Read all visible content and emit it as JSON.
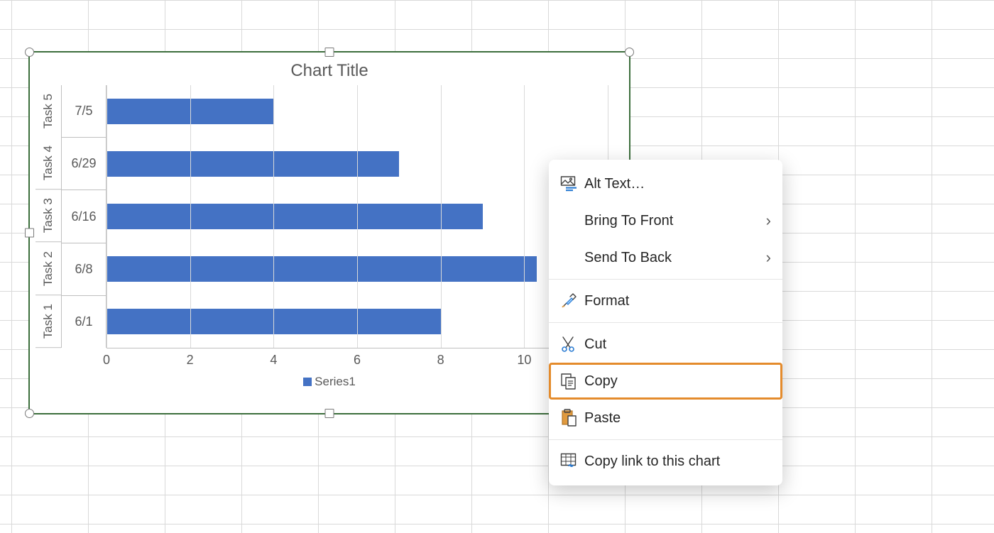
{
  "chart": {
    "type": "bar",
    "title": "Chart Title",
    "title_fontsize": 24,
    "title_color": "#595959",
    "background_color": "#ffffff",
    "selection_border_color": "#3c6e3c",
    "gridline_color": "#d9d9d9",
    "axis_line_color": "#bfbfbf",
    "label_color": "#595959",
    "label_fontsize": 18,
    "categories_outer": [
      "Task 5",
      "Task 4",
      "Task 3",
      "Task 2",
      "Task 1"
    ],
    "categories_inner": [
      "7/5",
      "6/29",
      "6/16",
      "6/8",
      "6/1"
    ],
    "values": [
      4,
      7,
      9,
      10.3,
      8
    ],
    "bar_color": "#4472c4",
    "bar_height_pct": 48,
    "x_axis": {
      "min": 0,
      "max": 12,
      "ticks": [
        0,
        2,
        4,
        6,
        8,
        10,
        12
      ]
    },
    "legend": {
      "label": "Series1",
      "swatch_color": "#4472c4"
    }
  },
  "context_menu": {
    "highlight_color": "#e48b2c",
    "items": [
      {
        "icon": "alt-text-icon",
        "label": "Alt Text…",
        "has_submenu": false
      },
      {
        "icon": "",
        "label": "Bring To Front",
        "has_submenu": true
      },
      {
        "icon": "",
        "label": "Send To Back",
        "has_submenu": true
      },
      {
        "separator": true
      },
      {
        "icon": "format-icon",
        "label": "Format",
        "has_submenu": false
      },
      {
        "separator": true
      },
      {
        "icon": "cut-icon",
        "label": "Cut",
        "has_submenu": false
      },
      {
        "icon": "copy-icon",
        "label": "Copy",
        "has_submenu": false,
        "highlighted": true
      },
      {
        "icon": "paste-icon",
        "label": "Paste",
        "has_submenu": false
      },
      {
        "separator": true
      },
      {
        "icon": "link-chart-icon",
        "label": "Copy link to this chart",
        "has_submenu": false
      }
    ]
  }
}
